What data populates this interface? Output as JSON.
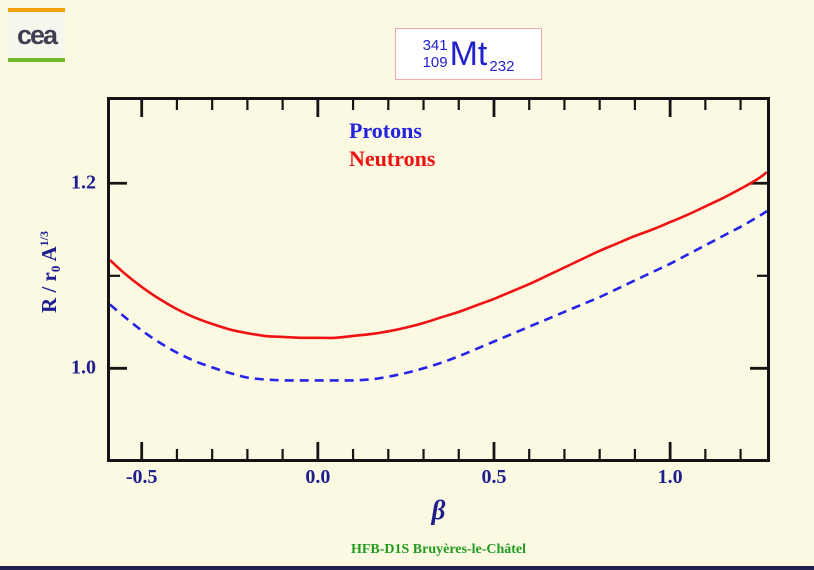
{
  "page": {
    "background": "#FBF9E2",
    "bottom_bar_color": "#21214D"
  },
  "logo": {
    "text": "cea",
    "orange_bar_color": "#F0A30A",
    "green_bar_color": "#74B82E",
    "text_color": "#3E3E52",
    "background": "#F7F6EE"
  },
  "nuclide": {
    "mass_number": "341",
    "proton_number": "109",
    "symbol": "Mt",
    "neutron_number": "232",
    "text_color": "#2222CC",
    "border_color": "#F2AAAA"
  },
  "legend": {
    "items": [
      {
        "label": "Protons",
        "color": "#2424DD"
      },
      {
        "label": "Neutrons",
        "color": "#EE1212"
      }
    ]
  },
  "axes": {
    "ylabel": {
      "part1": "R / r",
      "sub": "0",
      "part2": " A",
      "sup": "1/3"
    },
    "xlabel": "β",
    "tick_label_color": "#1E1E8E",
    "frame_color": "#141414"
  },
  "footer": {
    "text": "HFB-D1S Bruyères-le-Châtel",
    "color": "#1F9B1F"
  },
  "chart_data": {
    "type": "line",
    "title": "341 109 Mt 232 (nuclide box)",
    "xlabel": "β",
    "ylabel": "R / r0 A^1/3",
    "xlim": [
      -0.59,
      1.275
    ],
    "ylim": [
      0.902,
      1.29
    ],
    "xticks_major": [
      -0.5,
      0.0,
      0.5,
      1.0
    ],
    "xtick_labels": [
      "-0.5",
      "0.0",
      "0.5",
      "1.0"
    ],
    "xticks_minor": [
      -0.4,
      -0.3,
      -0.2,
      -0.1,
      0.1,
      0.2,
      0.3,
      0.4,
      0.6,
      0.7,
      0.8,
      0.9,
      1.1,
      1.2
    ],
    "yticks_major": [
      1.0,
      1.2
    ],
    "ytick_labels": [
      "1.0",
      "1.2"
    ],
    "yticks_minor": [
      1.1
    ],
    "grid": false,
    "legend_position": "top-center-inside",
    "series": [
      {
        "name": "Neutrons",
        "color": "#F01212",
        "style": "solid",
        "points": [
          [
            -0.59,
            1.117
          ],
          [
            -0.55,
            1.103
          ],
          [
            -0.5,
            1.088
          ],
          [
            -0.45,
            1.075
          ],
          [
            -0.4,
            1.064
          ],
          [
            -0.35,
            1.055
          ],
          [
            -0.3,
            1.048
          ],
          [
            -0.25,
            1.042
          ],
          [
            -0.2,
            1.038
          ],
          [
            -0.15,
            1.035
          ],
          [
            -0.1,
            1.034
          ],
          [
            -0.05,
            1.033
          ],
          [
            0.0,
            1.033
          ],
          [
            0.05,
            1.033
          ],
          [
            0.1,
            1.035
          ],
          [
            0.15,
            1.037
          ],
          [
            0.2,
            1.04
          ],
          [
            0.25,
            1.044
          ],
          [
            0.3,
            1.049
          ],
          [
            0.35,
            1.055
          ],
          [
            0.4,
            1.061
          ],
          [
            0.45,
            1.068
          ],
          [
            0.5,
            1.075
          ],
          [
            0.55,
            1.083
          ],
          [
            0.6,
            1.091
          ],
          [
            0.65,
            1.1
          ],
          [
            0.7,
            1.109
          ],
          [
            0.75,
            1.118
          ],
          [
            0.8,
            1.127
          ],
          [
            0.85,
            1.135
          ],
          [
            0.9,
            1.143
          ],
          [
            0.95,
            1.15
          ],
          [
            1.0,
            1.158
          ],
          [
            1.05,
            1.166
          ],
          [
            1.1,
            1.175
          ],
          [
            1.15,
            1.184
          ],
          [
            1.2,
            1.194
          ],
          [
            1.25,
            1.205
          ],
          [
            1.275,
            1.212
          ]
        ]
      },
      {
        "name": "Protons",
        "color": "#2424E8",
        "style": "dashed",
        "points": [
          [
            -0.59,
            1.069
          ],
          [
            -0.55,
            1.056
          ],
          [
            -0.5,
            1.041
          ],
          [
            -0.45,
            1.028
          ],
          [
            -0.4,
            1.017
          ],
          [
            -0.35,
            1.008
          ],
          [
            -0.3,
            1.001
          ],
          [
            -0.25,
            0.995
          ],
          [
            -0.2,
            0.99
          ],
          [
            -0.15,
            0.988
          ],
          [
            -0.1,
            0.987
          ],
          [
            -0.05,
            0.987
          ],
          [
            0.0,
            0.987
          ],
          [
            0.05,
            0.987
          ],
          [
            0.1,
            0.987
          ],
          [
            0.15,
            0.988
          ],
          [
            0.2,
            0.991
          ],
          [
            0.25,
            0.995
          ],
          [
            0.3,
            1.0
          ],
          [
            0.35,
            1.006
          ],
          [
            0.4,
            1.013
          ],
          [
            0.45,
            1.021
          ],
          [
            0.5,
            1.029
          ],
          [
            0.55,
            1.037
          ],
          [
            0.6,
            1.045
          ],
          [
            0.65,
            1.053
          ],
          [
            0.7,
            1.061
          ],
          [
            0.75,
            1.069
          ],
          [
            0.8,
            1.077
          ],
          [
            0.85,
            1.086
          ],
          [
            0.9,
            1.095
          ],
          [
            0.95,
            1.104
          ],
          [
            1.0,
            1.113
          ],
          [
            1.05,
            1.123
          ],
          [
            1.1,
            1.133
          ],
          [
            1.15,
            1.143
          ],
          [
            1.2,
            1.153
          ],
          [
            1.25,
            1.164
          ],
          [
            1.275,
            1.17
          ]
        ]
      }
    ]
  }
}
